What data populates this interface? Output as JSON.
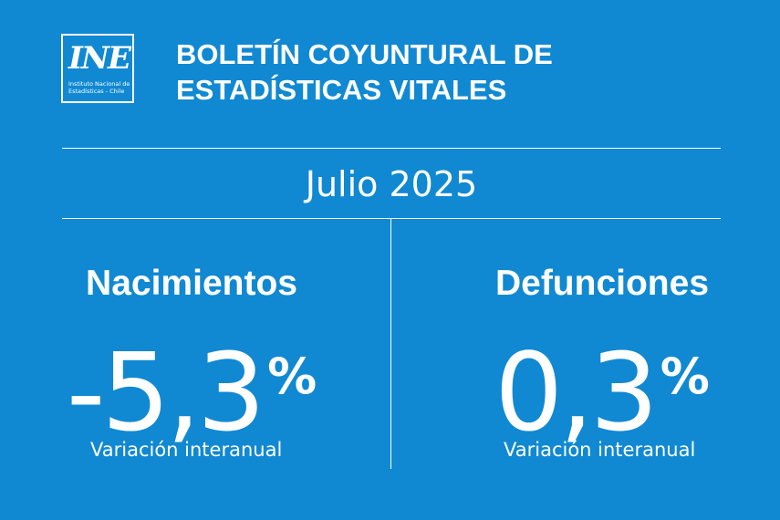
{
  "logo": {
    "mark": "INE",
    "caption_line1": "Instituto Nacional de",
    "caption_line2": "Estadísticas - Chile"
  },
  "header": {
    "title_line1": "BOLETÍN COYUNTURAL DE",
    "title_line2": "ESTADÍSTICAS VITALES"
  },
  "period": "Julio 2025",
  "stats": {
    "births": {
      "label": "Nacimientos",
      "value": "-5,3",
      "unit": "%",
      "note": "Variación interanual"
    },
    "deaths": {
      "label": "Defunciones",
      "value": "0,3",
      "unit": "%",
      "note": "Variación interanual"
    }
  },
  "colors": {
    "background": "#1089d2",
    "foreground": "#ffffff"
  }
}
